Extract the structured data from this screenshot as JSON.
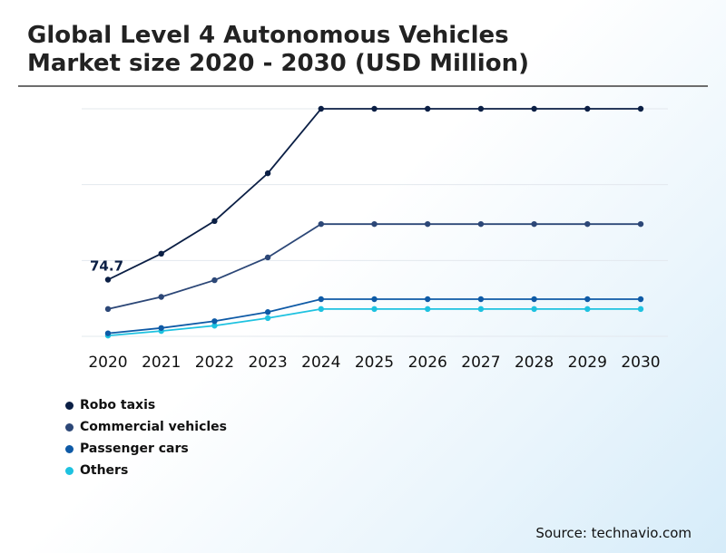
{
  "chart_data": {
    "type": "line",
    "title": "Global Level 4 Autonomous Vehicles Market size 2020 - 2030 (USD Million)",
    "title_lines": [
      "Global Level 4 Autonomous Vehicles",
      "Market size 2020 - 2030 (USD Million)"
    ],
    "xlabel": "",
    "ylabel": "",
    "ylim": [
      0,
      300
    ],
    "grid": true,
    "categories": [
      "2020",
      "2021",
      "2022",
      "2023",
      "2024",
      "2025",
      "2026",
      "2027",
      "2028",
      "2029",
      "2030"
    ],
    "series": [
      {
        "name": "Robo taxis",
        "color": "#0b1f45",
        "values": [
          74.7,
          109,
          152,
          215,
          300,
          300,
          300,
          300,
          300,
          300,
          300
        ]
      },
      {
        "name": "Commercial vehicles",
        "color": "#2c4777",
        "values": [
          36,
          52,
          74,
          104,
          148,
          148,
          148,
          148,
          148,
          148,
          148
        ]
      },
      {
        "name": "Passenger cars",
        "color": "#0e5aa6",
        "values": [
          4,
          11,
          20,
          32,
          49,
          49,
          49,
          49,
          49,
          49,
          49
        ]
      },
      {
        "name": "Others",
        "color": "#1ec2e0",
        "values": [
          1,
          7,
          14,
          24,
          36,
          36,
          36,
          36,
          36,
          36,
          36
        ]
      }
    ],
    "annotations": [
      {
        "series": "Robo taxis",
        "category": "2020",
        "label": "74.7"
      }
    ],
    "legend_position": "bottom-left"
  },
  "source": "Source: technavio.com"
}
